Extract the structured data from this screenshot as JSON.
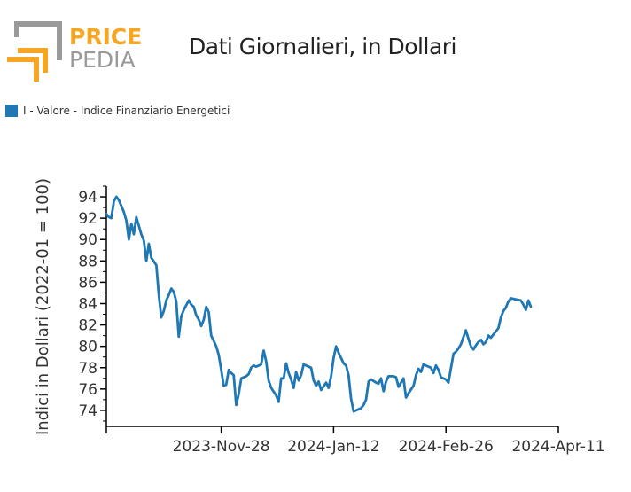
{
  "header": {
    "logo_top": "PRICE",
    "logo_bottom": "PEDIA",
    "title": "Dati Giornalieri, in Dollari"
  },
  "colors": {
    "line": "#1f77b4",
    "logo_orange": "#f5a623",
    "logo_gray": "#9a9a9a"
  },
  "chart_data": {
    "type": "line",
    "title": "Dati Giornalieri, in Dollari",
    "ylabel": "Indici in Dollari (2022-01 = 100)",
    "xlabel": "",
    "ylim": [
      72.5,
      95
    ],
    "yticks": [
      74,
      76,
      78,
      80,
      82,
      84,
      86,
      88,
      90,
      92,
      94
    ],
    "xticks": [
      "2023-Nov-28",
      "2024-Jan-12",
      "2024-Feb-26",
      "2024-Apr-11"
    ],
    "legend_position": "top-left",
    "grid": false,
    "series": [
      {
        "name": "I - Valore - Indice Finanziario Energetici",
        "points": [
          [
            "2023-10-13",
            92.4
          ],
          [
            "2023-10-14",
            92.1
          ],
          [
            "2023-10-15",
            92.0
          ],
          [
            "2023-10-16",
            93.6
          ],
          [
            "2023-10-17",
            94.0
          ],
          [
            "2023-10-18",
            93.7
          ],
          [
            "2023-10-20",
            92.6
          ],
          [
            "2023-10-21",
            91.8
          ],
          [
            "2023-10-22",
            90.0
          ],
          [
            "2023-10-23",
            91.5
          ],
          [
            "2023-10-24",
            90.5
          ],
          [
            "2023-10-25",
            92.1
          ],
          [
            "2023-10-27",
            90.5
          ],
          [
            "2023-10-28",
            89.9
          ],
          [
            "2023-10-29",
            88.0
          ],
          [
            "2023-10-30",
            89.6
          ],
          [
            "2023-10-31",
            88.3
          ],
          [
            "2023-11-02",
            87.6
          ],
          [
            "2023-11-03",
            84.8
          ],
          [
            "2023-11-04",
            82.7
          ],
          [
            "2023-11-05",
            83.3
          ],
          [
            "2023-11-06",
            84.3
          ],
          [
            "2023-11-07",
            84.8
          ],
          [
            "2023-11-08",
            85.4
          ],
          [
            "2023-11-09",
            85.1
          ],
          [
            "2023-11-10",
            84.2
          ],
          [
            "2023-11-11",
            80.9
          ],
          [
            "2023-11-12",
            82.8
          ],
          [
            "2023-11-13",
            83.4
          ],
          [
            "2023-11-15",
            84.3
          ],
          [
            "2023-11-16",
            83.9
          ],
          [
            "2023-11-17",
            83.7
          ],
          [
            "2023-11-18",
            82.9
          ],
          [
            "2023-11-19",
            82.5
          ],
          [
            "2023-11-20",
            81.9
          ],
          [
            "2023-11-21",
            82.5
          ],
          [
            "2023-11-22",
            83.7
          ],
          [
            "2023-11-23",
            83.2
          ],
          [
            "2023-11-24",
            81.0
          ],
          [
            "2023-11-25",
            80.5
          ],
          [
            "2023-11-26",
            80.0
          ],
          [
            "2023-11-27",
            79.2
          ],
          [
            "2023-11-28",
            77.8
          ],
          [
            "2023-11-29",
            76.3
          ],
          [
            "2023-11-30",
            76.4
          ],
          [
            "2023-12-01",
            77.8
          ],
          [
            "2023-12-02",
            77.5
          ],
          [
            "2023-12-03",
            77.3
          ],
          [
            "2023-12-04",
            74.5
          ],
          [
            "2023-12-05",
            75.5
          ],
          [
            "2023-12-06",
            77.0
          ],
          [
            "2023-12-08",
            77.2
          ],
          [
            "2023-12-09",
            77.4
          ],
          [
            "2023-12-10",
            78.0
          ],
          [
            "2023-12-11",
            78.2
          ],
          [
            "2023-12-12",
            78.1
          ],
          [
            "2023-12-14",
            78.3
          ],
          [
            "2023-12-15",
            79.6
          ],
          [
            "2023-12-16",
            78.6
          ],
          [
            "2023-12-17",
            76.8
          ],
          [
            "2023-12-18",
            76.1
          ],
          [
            "2023-12-20",
            75.4
          ],
          [
            "2023-12-21",
            74.8
          ],
          [
            "2023-12-22",
            77.0
          ],
          [
            "2023-12-23",
            77.0
          ],
          [
            "2023-12-24",
            78.4
          ],
          [
            "2023-12-25",
            77.5
          ],
          [
            "2023-12-26",
            76.9
          ],
          [
            "2023-12-27",
            76.1
          ],
          [
            "2023-12-28",
            77.6
          ],
          [
            "2023-12-29",
            76.8
          ],
          [
            "2023-12-30",
            77.3
          ],
          [
            "2023-12-31",
            78.3
          ],
          [
            "2024-01-01",
            78.2
          ],
          [
            "2024-01-03",
            78.0
          ],
          [
            "2024-01-04",
            76.8
          ],
          [
            "2024-01-05",
            76.3
          ],
          [
            "2024-01-06",
            76.7
          ],
          [
            "2024-01-07",
            75.9
          ],
          [
            "2024-01-09",
            76.6
          ],
          [
            "2024-01-10",
            76.1
          ],
          [
            "2024-01-11",
            77.2
          ],
          [
            "2024-01-12",
            78.9
          ],
          [
            "2024-01-13",
            80.0
          ],
          [
            "2024-01-14",
            79.4
          ],
          [
            "2024-01-16",
            78.4
          ],
          [
            "2024-01-17",
            78.2
          ],
          [
            "2024-01-18",
            77.3
          ],
          [
            "2024-01-19",
            75.1
          ],
          [
            "2024-01-20",
            73.9
          ],
          [
            "2024-01-22",
            74.1
          ],
          [
            "2024-01-23",
            74.2
          ],
          [
            "2024-01-24",
            74.5
          ],
          [
            "2024-01-25",
            75.0
          ],
          [
            "2024-01-26",
            76.7
          ],
          [
            "2024-01-27",
            76.9
          ],
          [
            "2024-01-29",
            76.6
          ],
          [
            "2024-01-30",
            76.5
          ],
          [
            "2024-01-31",
            77.0
          ],
          [
            "2024-02-01",
            75.8
          ],
          [
            "2024-02-02",
            76.7
          ],
          [
            "2024-02-03",
            77.2
          ],
          [
            "2024-02-05",
            77.2
          ],
          [
            "2024-02-06",
            77.1
          ],
          [
            "2024-02-07",
            76.2
          ],
          [
            "2024-02-09",
            77.0
          ],
          [
            "2024-02-10",
            75.2
          ],
          [
            "2024-02-11",
            75.6
          ],
          [
            "2024-02-13",
            76.3
          ],
          [
            "2024-02-14",
            77.3
          ],
          [
            "2024-02-15",
            77.9
          ],
          [
            "2024-02-16",
            77.6
          ],
          [
            "2024-02-17",
            78.3
          ],
          [
            "2024-02-19",
            78.1
          ],
          [
            "2024-02-20",
            78.0
          ],
          [
            "2024-02-21",
            77.5
          ],
          [
            "2024-02-22",
            78.2
          ],
          [
            "2024-02-23",
            77.8
          ],
          [
            "2024-02-24",
            77.1
          ],
          [
            "2024-02-26",
            76.9
          ],
          [
            "2024-02-27",
            76.6
          ],
          [
            "2024-02-29",
            79.3
          ],
          [
            "2024-03-01",
            79.5
          ],
          [
            "2024-03-02",
            79.8
          ],
          [
            "2024-03-03",
            80.2
          ],
          [
            "2024-03-05",
            81.5
          ],
          [
            "2024-03-06",
            80.7
          ],
          [
            "2024-03-07",
            80.0
          ],
          [
            "2024-03-08",
            79.7
          ],
          [
            "2024-03-09",
            80.1
          ],
          [
            "2024-03-10",
            80.4
          ],
          [
            "2024-03-11",
            80.6
          ],
          [
            "2024-03-12",
            80.2
          ],
          [
            "2024-03-13",
            80.4
          ],
          [
            "2024-03-14",
            81.0
          ],
          [
            "2024-03-15",
            80.8
          ],
          [
            "2024-03-16",
            81.1
          ],
          [
            "2024-03-17",
            81.4
          ],
          [
            "2024-03-18",
            81.7
          ],
          [
            "2024-03-19",
            82.7
          ],
          [
            "2024-03-20",
            83.3
          ],
          [
            "2024-03-21",
            83.6
          ],
          [
            "2024-03-22",
            84.2
          ],
          [
            "2024-03-23",
            84.5
          ],
          [
            "2024-03-25",
            84.4
          ],
          [
            "2024-03-27",
            84.3
          ],
          [
            "2024-03-28",
            83.9
          ],
          [
            "2024-03-29",
            83.4
          ],
          [
            "2024-03-30",
            84.3
          ],
          [
            "2024-03-31",
            83.7
          ]
        ]
      }
    ]
  }
}
